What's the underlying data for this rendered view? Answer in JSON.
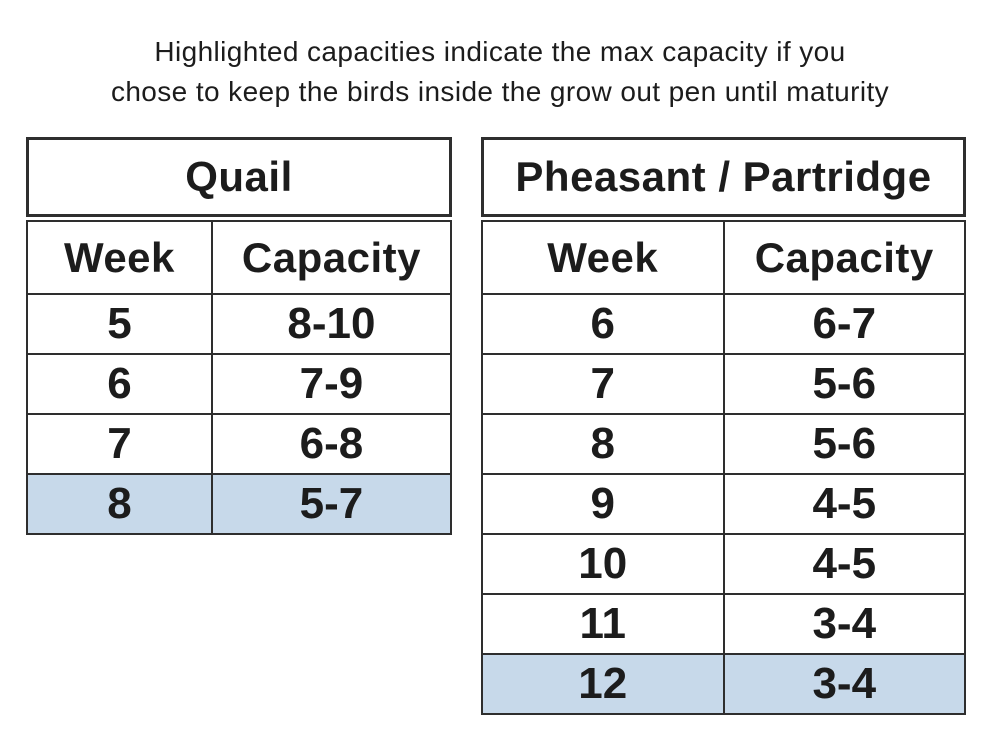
{
  "heading": {
    "line1": "Highlighted capacities indicate the max capacity if you",
    "line2": "chose to keep the birds inside the grow out pen until maturity"
  },
  "colors": {
    "highlight_blue": "#c7d9ea",
    "border": "#2e2e2e",
    "text": "#1c1c1c",
    "background": "#ffffff"
  },
  "chart_data": [
    {
      "type": "table",
      "title": "Quail",
      "columns": [
        "Week",
        "Capacity"
      ],
      "rows": [
        [
          "5",
          "8-10"
        ],
        [
          "6",
          "7-9"
        ],
        [
          "7",
          "6-8"
        ],
        [
          "8",
          "5-7"
        ]
      ],
      "highlighted_rows": [
        3
      ],
      "highlight_meaning": "max capacity if birds kept inside grow out pen until maturity"
    },
    {
      "type": "table",
      "title": "Pheasant / Partridge",
      "columns": [
        "Week",
        "Capacity"
      ],
      "rows": [
        [
          "6",
          "6-7"
        ],
        [
          "7",
          "5-6"
        ],
        [
          "8",
          "5-6"
        ],
        [
          "9",
          "4-5"
        ],
        [
          "10",
          "4-5"
        ],
        [
          "11",
          "3-4"
        ],
        [
          "12",
          "3-4"
        ]
      ],
      "highlighted_rows": [
        6
      ],
      "highlight_meaning": "max capacity if birds kept inside grow out pen until maturity"
    }
  ]
}
